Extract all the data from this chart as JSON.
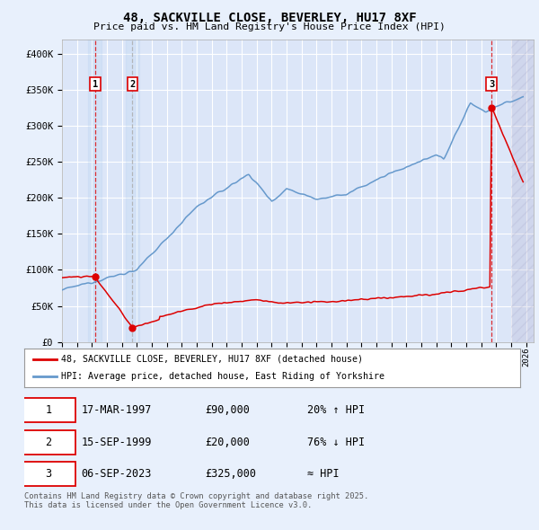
{
  "title": "48, SACKVILLE CLOSE, BEVERLEY, HU17 8XF",
  "subtitle": "Price paid vs. HM Land Registry's House Price Index (HPI)",
  "yticks": [
    0,
    50000,
    100000,
    150000,
    200000,
    250000,
    300000,
    350000,
    400000
  ],
  "ytick_labels": [
    "£0",
    "£50K",
    "£100K",
    "£150K",
    "£200K",
    "£250K",
    "£300K",
    "£350K",
    "£400K"
  ],
  "xlim_start": 1995.0,
  "xlim_end": 2026.5,
  "ylim": [
    0,
    420000
  ],
  "bg_color": "#e8f0fc",
  "plot_bg_color": "#dce6f8",
  "grid_color": "#ffffff",
  "transaction_color": "#dd0000",
  "hpi_color": "#6699cc",
  "transaction1_date": 1997.21,
  "transaction1_price": 90000,
  "transaction2_date": 1999.71,
  "transaction2_price": 20000,
  "transaction3_date": 2023.68,
  "transaction3_price": 325000,
  "legend_line1": "48, SACKVILLE CLOSE, BEVERLEY, HU17 8XF (detached house)",
  "legend_line2": "HPI: Average price, detached house, East Riding of Yorkshire",
  "table_row1": [
    "1",
    "17-MAR-1997",
    "£90,000",
    "20% ↑ HPI"
  ],
  "table_row2": [
    "2",
    "15-SEP-1999",
    "£20,000",
    "76% ↓ HPI"
  ],
  "table_row3": [
    "3",
    "06-SEP-2023",
    "£325,000",
    "≈ HPI"
  ],
  "footer": "Contains HM Land Registry data © Crown copyright and database right 2025.\nThis data is licensed under the Open Government Licence v3.0."
}
